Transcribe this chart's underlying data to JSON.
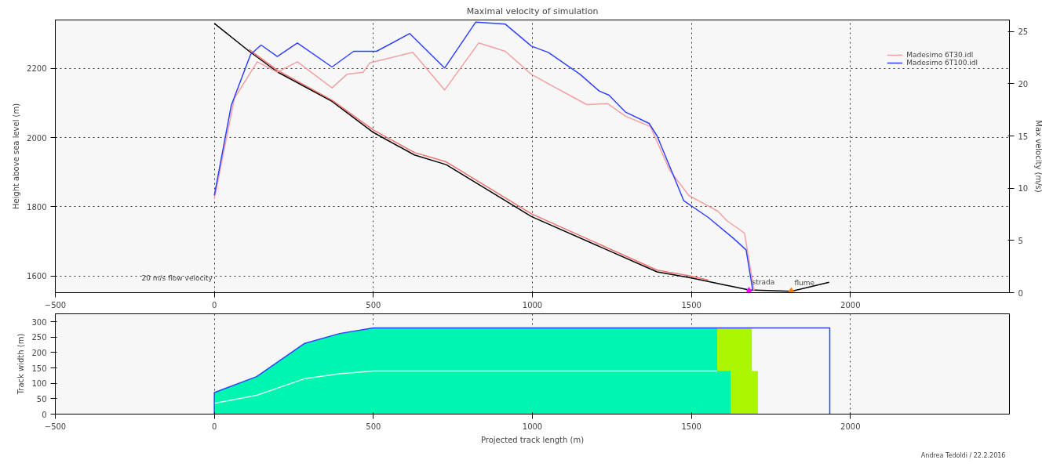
{
  "chart_data": [
    {
      "type": "line",
      "title": "Maximal velocity of simulation",
      "ylabel": "Height above sea level (m)",
      "y2label": "Max velocity (m/s)",
      "xlim": [
        -500,
        2500
      ],
      "xticks": [
        -500,
        0,
        500,
        1000,
        1500,
        2000
      ],
      "ylim": [
        1552,
        2340
      ],
      "yticks": [
        1600,
        1800,
        2000,
        2200
      ],
      "y2lim": [
        0,
        26.1
      ],
      "y2ticks": [
        0,
        5,
        10,
        15,
        20,
        25
      ],
      "grid": true,
      "legend": "top right",
      "series": [
        {
          "color": "#000000",
          "x": [
            0,
            109,
            198,
            370,
            500,
            629,
            729,
            997,
            1392,
            1497,
            1600,
            1681,
            1814,
            1933
          ],
          "values": [
            2330,
            2250,
            2190,
            2105,
            2015,
            1950,
            1922,
            1772,
            1612,
            1595,
            1575,
            1560,
            1556,
            1582
          ]
        },
        {
          "color": "#f07070",
          "x": [
            109,
            198,
            370,
            500,
            629,
            729,
            997,
            1392,
            1497,
            1553
          ],
          "values": [
            2255,
            2195,
            2108,
            2022,
            1957,
            1930,
            1780,
            1617,
            1600,
            1588
          ]
        },
        {
          "name": "Madesimo 6T30.idl",
          "color": "#f4a0a0",
          "axis": "y2",
          "x": [
            0,
            63,
            135,
            198,
            261,
            370,
            417,
            468,
            489,
            624,
            724,
            831,
            915,
            997,
            1050,
            1171,
            1236,
            1292,
            1371,
            1432,
            1492,
            1583,
            1611,
            1667,
            1697
          ],
          "values": [
            9.0,
            18.6,
            22.1,
            21.1,
            22.1,
            19.6,
            20.9,
            21.1,
            22.0,
            23.0,
            19.4,
            23.9,
            23.1,
            20.9,
            20.0,
            18.0,
            18.1,
            16.9,
            15.9,
            11.7,
            9.3,
            7.8,
            6.9,
            5.7,
            0.2
          ]
        },
        {
          "name": "Madesimo 6T100.idl",
          "color": "#3040ff",
          "axis": "y2",
          "x": [
            0,
            53,
            114,
            147,
            198,
            261,
            370,
            438,
            510,
            614,
            724,
            822,
            915,
            997,
            1050,
            1150,
            1210,
            1241,
            1292,
            1367,
            1392,
            1441,
            1476,
            1553,
            1632,
            1672,
            1693
          ],
          "values": [
            9.3,
            17.9,
            22.8,
            23.7,
            22.6,
            23.9,
            21.6,
            23.1,
            23.1,
            24.8,
            21.5,
            25.9,
            25.7,
            23.6,
            23.0,
            20.9,
            19.3,
            18.9,
            17.3,
            16.2,
            15.0,
            11.4,
            8.8,
            7.2,
            5.2,
            4.1,
            0.2
          ]
        },
        {
          "type": "scatter",
          "marker": "diamond",
          "x": [
            1681,
            1814
          ],
          "values": [
            1557,
            1556
          ],
          "colors": [
            "#ff00ff",
            "#ff8000"
          ],
          "value_labels": [
            "strada",
            "flume"
          ]
        }
      ],
      "annotations": [
        "20 m/s flow velocity"
      ]
    },
    {
      "type": "area",
      "xlabel": "Projected track length (m)",
      "ylabel": "Track width (m)",
      "xlim": [
        -500,
        2500
      ],
      "xticks": [
        -500,
        0,
        500,
        1000,
        1500,
        2000
      ],
      "ylim": [
        0,
        326
      ],
      "yticks": [
        0,
        50,
        100,
        150,
        200,
        250,
        300
      ],
      "grid": "x",
      "series": [
        {
          "color": "#aaf500",
          "x": [
            1581,
            1690
          ],
          "values": [
            280,
            280
          ]
        },
        {
          "color": "#00f5b0",
          "x": [
            0,
            133,
            284,
            394,
            500,
            1581,
            1581,
            1623
          ],
          "values": [
            70,
            122,
            230,
            262,
            280,
            280,
            140,
            140
          ]
        },
        {
          "color": "#aaf500",
          "x": [
            1623,
            1709
          ],
          "values": [
            140,
            140
          ]
        },
        {
          "type": "line",
          "color": "#d8fff0",
          "x": [
            0,
            133,
            284,
            394,
            500,
            1581
          ],
          "values": [
            35,
            61,
            115,
            131,
            140,
            140
          ]
        },
        {
          "type": "line",
          "color": "#3040ff",
          "x": [
            0,
            0,
            133,
            284,
            394,
            500,
            1935,
            1935
          ],
          "values": [
            0,
            70,
            122,
            230,
            262,
            280,
            280,
            0
          ]
        }
      ],
      "annotations": [
        "Andrea Tedoldi  /  22.2.2016"
      ]
    }
  ]
}
